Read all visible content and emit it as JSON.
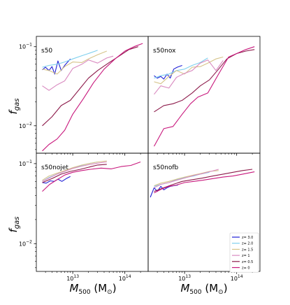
{
  "chart_data": {
    "type": "line",
    "layout": "2x2 grid, shared axes",
    "y_axis_label": "f_gas",
    "x_axis_label": "M_500 (M_⊙)",
    "x_scale": "log",
    "y_scale": "log",
    "xlim": [
      2000000000000.0,
      280000000000000.0
    ],
    "ylim": [
      0.0045,
      0.135
    ],
    "x_tick_labels": [
      "10^13",
      "10^14"
    ],
    "y_tick_labels": [
      "10^-1",
      "10^-2"
    ],
    "legend": {
      "placement": "lower-right of bottom-right panel",
      "entries": [
        {
          "label": "z= 3.0",
          "color": "#1f1fd6"
        },
        {
          "label": "z= 2.0",
          "color": "#7fd0ee"
        },
        {
          "label": "z= 1.5",
          "color": "#d6c48a"
        },
        {
          "label": "z= 1",
          "color": "#d98ac0"
        },
        {
          "label": "z= 0.5",
          "color": "#8c1a4a"
        },
        {
          "label": "z= 0",
          "color": "#c8177c"
        }
      ]
    },
    "panels": [
      {
        "name": "s50",
        "series": [
          {
            "name": "z= 3.0",
            "x": [
              2600000000000.0,
              3000000000000.0,
              3500000000000.0,
              4000000000000.0,
              4500000000000.0,
              5200000000000.0,
              6000000000000.0,
              7000000000000.0,
              9000000000000.0
            ],
            "y": [
              0.051,
              0.055,
              0.05,
              0.056,
              0.045,
              0.066,
              0.05,
              0.058,
              0.07
            ]
          },
          {
            "name": "z= 2.0",
            "x": [
              2600000000000.0,
              3500000000000.0,
              5000000000000.0,
              7000000000000.0,
              10000000000000.0,
              15000000000000.0,
              20000000000000.0,
              30000000000000.0
            ],
            "y": [
              0.055,
              0.058,
              0.06,
              0.064,
              0.07,
              0.077,
              0.082,
              0.09
            ]
          },
          {
            "name": "z= 1.5",
            "x": [
              2600000000000.0,
              3500000000000.0,
              5000000000000.0,
              7000000000000.0,
              10000000000000.0,
              15000000000000.0,
              20000000000000.0,
              30000000000000.0,
              45000000000000.0
            ],
            "y": [
              0.052,
              0.05,
              0.045,
              0.056,
              0.064,
              0.063,
              0.07,
              0.079,
              0.088
            ]
          },
          {
            "name": "z= 1",
            "x": [
              2600000000000.0,
              3500000000000.0,
              5000000000000.0,
              7000000000000.0,
              10000000000000.0,
              15000000000000.0,
              20000000000000.0,
              30000000000000.0,
              45000000000000.0,
              60000000000000.0
            ],
            "y": [
              0.032,
              0.028,
              0.033,
              0.037,
              0.053,
              0.06,
              0.068,
              0.062,
              0.072,
              0.076
            ]
          },
          {
            "name": "z= 0.5",
            "x": [
              2600000000000.0,
              4000000000000.0,
              6000000000000.0,
              9000000000000.0,
              14000000000000.0,
              20000000000000.0,
              30000000000000.0,
              50000000000000.0,
              80000000000000.0,
              120000000000000.0,
              180000000000000.0
            ],
            "y": [
              0.01,
              0.013,
              0.018,
              0.021,
              0.03,
              0.04,
              0.05,
              0.063,
              0.077,
              0.092,
              0.1
            ]
          },
          {
            "name": "z= 0",
            "x": [
              2600000000000.0,
              3500000000000.0,
              5000000000000.0,
              7000000000000.0,
              10000000000000.0,
              16000000000000.0,
              25000000000000.0,
              40000000000000.0,
              65000000000000.0,
              100000000000000.0,
              150000000000000.0,
              220000000000000.0
            ],
            "y": [
              0.0048,
              0.0058,
              0.0068,
              0.0088,
              0.014,
              0.022,
              0.035,
              0.052,
              0.07,
              0.088,
              0.1,
              0.11
            ]
          }
        ]
      },
      {
        "name": "s50nox",
        "series": [
          {
            "name": "z= 3.0",
            "x": [
              2600000000000.0,
              3000000000000.0,
              3500000000000.0,
              4000000000000.0,
              4600000000000.0,
              5300000000000.0,
              6200000000000.0,
              7200000000000.0,
              9000000000000.0
            ],
            "y": [
              0.043,
              0.04,
              0.042,
              0.039,
              0.045,
              0.04,
              0.052,
              0.055,
              0.058
            ]
          },
          {
            "name": "z= 2.0",
            "x": [
              2600000000000.0,
              3500000000000.0,
              5000000000000.0,
              7000000000000.0,
              10000000000000.0,
              14000000000000.0,
              20000000000000.0,
              28000000000000.0
            ],
            "y": [
              0.04,
              0.043,
              0.045,
              0.05,
              0.052,
              0.058,
              0.063,
              0.072
            ]
          },
          {
            "name": "z= 1.5",
            "x": [
              2600000000000.0,
              3500000000000.0,
              5000000000000.0,
              7000000000000.0,
              10000000000000.0,
              14000000000000.0,
              20000000000000.0,
              28000000000000.0,
              40000000000000.0,
              55000000000000.0
            ],
            "y": [
              0.036,
              0.034,
              0.042,
              0.05,
              0.045,
              0.055,
              0.056,
              0.062,
              0.07,
              0.074
            ]
          },
          {
            "name": "z= 1",
            "x": [
              2600000000000.0,
              3500000000000.0,
              5000000000000.0,
              7000000000000.0,
              10000000000000.0,
              14000000000000.0,
              20000000000000.0,
              28000000000000.0,
              40000000000000.0,
              55000000000000.0
            ],
            "y": [
              0.025,
              0.032,
              0.03,
              0.041,
              0.046,
              0.05,
              0.062,
              0.068,
              0.05,
              0.067
            ]
          },
          {
            "name": "z= 0.5",
            "x": [
              2600000000000.0,
              4000000000000.0,
              6000000000000.0,
              9000000000000.0,
              14000000000000.0,
              20000000000000.0,
              30000000000000.0,
              45000000000000.0,
              65000000000000.0,
              100000000000000.0,
              150000000000000.0,
              220000000000000.0
            ],
            "y": [
              0.015,
              0.018,
              0.019,
              0.021,
              0.026,
              0.032,
              0.038,
              0.052,
              0.07,
              0.082,
              0.088,
              0.092
            ]
          },
          {
            "name": "z= 0",
            "x": [
              2600000000000.0,
              4000000000000.0,
              6000000000000.0,
              9000000000000.0,
              13000000000000.0,
              18000000000000.0,
              28000000000000.0,
              45000000000000.0,
              70000000000000.0,
              100000000000000.0,
              150000000000000.0,
              220000000000000.0
            ],
            "y": [
              0.0055,
              0.0092,
              0.0098,
              0.014,
              0.019,
              0.023,
              0.026,
              0.045,
              0.074,
              0.082,
              0.092,
              0.1
            ]
          }
        ]
      },
      {
        "name": "s50nojet",
        "series": [
          {
            "name": "z= 3.0",
            "x": [
              2600000000000.0,
              3100000000000.0,
              3700000000000.0,
              4400000000000.0,
              5200000000000.0,
              6200000000000.0,
              7500000000000.0,
              9000000000000.0
            ],
            "y": [
              0.058,
              0.057,
              0.061,
              0.06,
              0.064,
              0.06,
              0.065,
              0.069
            ]
          },
          {
            "name": "z= 2.0",
            "x": [
              2600000000000.0,
              3500000000000.0,
              5000000000000.0,
              7000000000000.0,
              10000000000000.0,
              15000000000000.0,
              20000000000000.0,
              30000000000000.0
            ],
            "y": [
              0.06,
              0.067,
              0.074,
              0.08,
              0.088,
              0.095,
              0.1,
              0.105
            ]
          },
          {
            "name": "z= 1.5",
            "x": [
              2600000000000.0,
              3500000000000.0,
              5000000000000.0,
              7000000000000.0,
              10000000000000.0,
              15000000000000.0,
              20000000000000.0,
              30000000000000.0,
              45000000000000.0
            ],
            "y": [
              0.062,
              0.07,
              0.076,
              0.082,
              0.089,
              0.096,
              0.1,
              0.105,
              0.108
            ]
          },
          {
            "name": "z= 1",
            "x": [
              2600000000000.0,
              3500000000000.0,
              5000000000000.0,
              7000000000000.0,
              10000000000000.0,
              15000000000000.0,
              22000000000000.0,
              32000000000000.0,
              45000000000000.0
            ],
            "y": [
              0.06,
              0.066,
              0.074,
              0.08,
              0.087,
              0.093,
              0.098,
              0.102,
              0.105
            ]
          },
          {
            "name": "z= 0.5",
            "x": [
              2600000000000.0,
              4000000000000.0,
              6000000000000.0,
              9000000000000.0,
              14000000000000.0,
              20000000000000.0,
              30000000000000.0,
              45000000000000.0
            ],
            "y": [
              0.058,
              0.065,
              0.074,
              0.08,
              0.085,
              0.09,
              0.096,
              0.098
            ]
          },
          {
            "name": "z= 0",
            "x": [
              2600000000000.0,
              3600000000000.0,
              5000000000000.0,
              7000000000000.0,
              10000000000000.0,
              15000000000000.0,
              22000000000000.0,
              35000000000000.0,
              55000000000000.0,
              85000000000000.0,
              130000000000000.0,
              200000000000000.0
            ],
            "y": [
              0.045,
              0.055,
              0.063,
              0.072,
              0.078,
              0.082,
              0.085,
              0.088,
              0.086,
              0.092,
              0.095,
              0.105
            ]
          }
        ]
      },
      {
        "name": "s50nofb",
        "series": [
          {
            "name": "z= 3.0",
            "x": [
              2200000000000.0,
              2600000000000.0,
              3000000000000.0,
              3500000000000.0,
              4000000000000.0,
              4600000000000.0,
              5300000000000.0,
              6200000000000.0,
              7500000000000.0
            ],
            "y": [
              0.038,
              0.05,
              0.045,
              0.052,
              0.047,
              0.05,
              0.052,
              0.053,
              0.054
            ]
          },
          {
            "name": "z= 2.0",
            "x": [
              2600000000000.0,
              3500000000000.0,
              5000000000000.0,
              7000000000000.0,
              10000000000000.0,
              15000000000000.0,
              20000000000000.0,
              30000000000000.0
            ],
            "y": [
              0.052,
              0.055,
              0.058,
              0.063,
              0.067,
              0.07,
              0.074,
              0.078
            ]
          },
          {
            "name": "z= 1.5",
            "x": [
              2600000000000.0,
              3500000000000.0,
              5000000000000.0,
              7000000000000.0,
              10000000000000.0,
              15000000000000.0,
              20000000000000.0,
              30000000000000.0,
              45000000000000.0
            ],
            "y": [
              0.053,
              0.057,
              0.06,
              0.064,
              0.068,
              0.072,
              0.075,
              0.08,
              0.082
            ]
          },
          {
            "name": "z= 1",
            "x": [
              2600000000000.0,
              3500000000000.0,
              5000000000000.0,
              7000000000000.0,
              10000000000000.0,
              15000000000000.0,
              22000000000000.0,
              32000000000000.0,
              45000000000000.0
            ],
            "y": [
              0.05,
              0.055,
              0.058,
              0.062,
              0.066,
              0.071,
              0.075,
              0.08,
              0.085
            ]
          },
          {
            "name": "z= 0.5",
            "x": [
              2600000000000.0,
              4000000000000.0,
              6000000000000.0,
              9000000000000.0,
              14000000000000.0,
              22000000000000.0,
              35000000000000.0,
              55000000000000.0,
              85000000000000.0,
              130000000000000.0,
              200000000000000.0
            ],
            "y": [
              0.045,
              0.05,
              0.055,
              0.06,
              0.063,
              0.066,
              0.07,
              0.074,
              0.078,
              0.082,
              0.085
            ]
          },
          {
            "name": "z= 0",
            "x": [
              2600000000000.0,
              3600000000000.0,
              5000000000000.0,
              7000000000000.0,
              10000000000000.0,
              15000000000000.0,
              22000000000000.0,
              35000000000000.0,
              55000000000000.0,
              85000000000000.0,
              130000000000000.0,
              220000000000000.0
            ],
            "y": [
              0.043,
              0.048,
              0.052,
              0.054,
              0.058,
              0.06,
              0.062,
              0.065,
              0.068,
              0.07,
              0.074,
              0.079
            ]
          }
        ]
      }
    ]
  }
}
